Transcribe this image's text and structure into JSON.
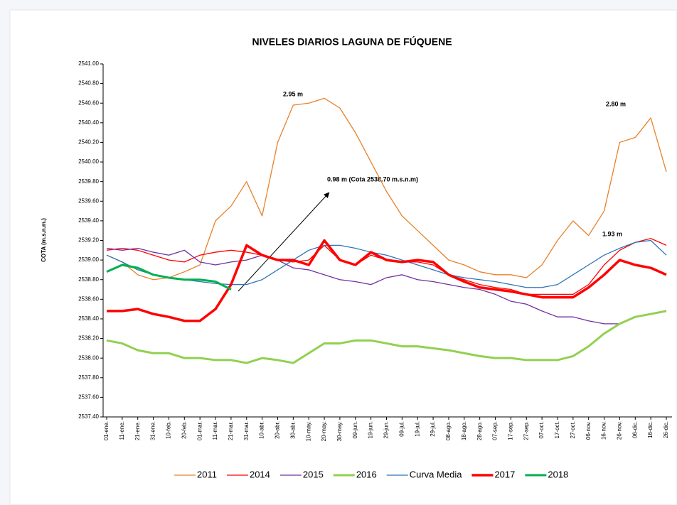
{
  "chart_data": {
    "type": "line",
    "title": "NIVELES DIARIOS LAGUNA DE FÚQUENE",
    "y_label": "COTA (m.s.n.m.)",
    "annotations": [
      "2.95 m",
      "2.80 m",
      "0.98 m (Cota 2538.70 m.s.n.m)",
      "1.93 m"
    ],
    "categories": [
      "01-ene.",
      "11-ene.",
      "21-ene.",
      "31-ene.",
      "10-feb.",
      "20-feb.",
      "01-mar.",
      "11-mar.",
      "21-mar.",
      "31-mar.",
      "10-abr.",
      "20-abr.",
      "30-abr.",
      "10-may.",
      "20-may.",
      "30-may.",
      "09-jun.",
      "19-jun.",
      "29-jun.",
      "09-jul.",
      "19-jul.",
      "29-jul.",
      "08-ago.",
      "18-ago.",
      "28-ago.",
      "07-sep.",
      "17-sep.",
      "27-sep.",
      "07-oct.",
      "17-oct.",
      "27-oct.",
      "06-nov.",
      "16-nov.",
      "26-nov.",
      "06-dic.",
      "16-dic.",
      "26-dic."
    ],
    "ylim": [
      2537.4,
      2541.0
    ],
    "yticks": [
      {
        "value": 2537.4,
        "label": "2537.40"
      },
      {
        "value": 2537.6,
        "label": "2537.60"
      },
      {
        "value": 2537.8,
        "label": "2537.80"
      },
      {
        "value": 2538.0,
        "label": "2538.00"
      },
      {
        "value": 2538.2,
        "label": "2538.20"
      },
      {
        "value": 2538.4,
        "label": "2538.40"
      },
      {
        "value": 2538.6,
        "label": "2538.60"
      },
      {
        "value": 2538.8,
        "label": "2538.80"
      },
      {
        "value": 2539.0,
        "label": "2539.00"
      },
      {
        "value": 2539.2,
        "label": "2539.20"
      },
      {
        "value": 2539.4,
        "label": "2539.40"
      },
      {
        "value": 2539.6,
        "label": "2539.60"
      },
      {
        "value": 2539.8,
        "label": "2539.80"
      },
      {
        "value": 2540.0,
        "label": "2540.00"
      },
      {
        "value": 2540.2,
        "label": "2540.20"
      },
      {
        "value": 2540.4,
        "label": "2540.40"
      },
      {
        "value": 2540.6,
        "label": "2540.60"
      },
      {
        "value": 2540.8,
        "label": "2540.80"
      },
      {
        "value": 2541.0,
        "label": "2541.00"
      }
    ],
    "legend": "bottom",
    "series": [
      {
        "name": "2011",
        "color": "#e8822a",
        "width": 1.3,
        "values": [
          2539.05,
          2538.98,
          2538.85,
          2538.8,
          2538.82,
          2538.88,
          2538.95,
          2539.4,
          2539.55,
          2539.8,
          2539.45,
          2540.2,
          2540.58,
          2540.6,
          2540.65,
          2540.55,
          2540.3,
          2540.0,
          2539.7,
          2539.45,
          2539.3,
          2539.15,
          2539.0,
          2538.95,
          2538.88,
          2538.85,
          2538.85,
          2538.82,
          2538.95,
          2539.2,
          2539.4,
          2539.25,
          2539.5,
          2540.2,
          2540.25,
          2540.45,
          2539.9
        ]
      },
      {
        "name": "2014",
        "color": "#ff0000",
        "width": 1.3,
        "values": [
          2539.1,
          2539.12,
          2539.1,
          2539.05,
          2539.0,
          2538.98,
          2539.05,
          2539.08,
          2539.1,
          2539.08,
          2539.05,
          2539.0,
          2538.98,
          2539.0,
          2539.15,
          2539.0,
          2538.95,
          2539.05,
          2539.0,
          2538.98,
          2538.98,
          2538.95,
          2538.85,
          2538.8,
          2538.75,
          2538.72,
          2538.7,
          2538.65,
          2538.65,
          2538.65,
          2538.65,
          2538.75,
          2538.95,
          2539.1,
          2539.18,
          2539.22,
          2539.15
        ]
      },
      {
        "name": "2015",
        "color": "#7030a0",
        "width": 1.3,
        "values": [
          2539.12,
          2539.1,
          2539.12,
          2539.08,
          2539.05,
          2539.1,
          2538.98,
          2538.95,
          2538.98,
          2539.0,
          2539.05,
          2539.0,
          2538.92,
          2538.9,
          2538.85,
          2538.8,
          2538.78,
          2538.75,
          2538.82,
          2538.85,
          2538.8,
          2538.78,
          2538.75,
          2538.72,
          2538.7,
          2538.65,
          2538.58,
          2538.55,
          2538.48,
          2538.42,
          2538.42,
          2538.38,
          2538.35,
          2538.35,
          null,
          null,
          null
        ]
      },
      {
        "name": "2016",
        "color": "#92d050",
        "width": 3,
        "values": [
          2538.18,
          2538.15,
          2538.08,
          2538.05,
          2538.05,
          2538.0,
          2538.0,
          2537.98,
          2537.98,
          2537.95,
          2538.0,
          2537.98,
          2537.95,
          2538.05,
          2538.15,
          2538.15,
          2538.18,
          2538.18,
          2538.15,
          2538.12,
          2538.12,
          2538.1,
          2538.08,
          2538.05,
          2538.02,
          2538.0,
          2538.0,
          2537.98,
          2537.98,
          2537.98,
          2538.02,
          2538.12,
          2538.25,
          2538.35,
          2538.42,
          2538.45,
          2538.48
        ]
      },
      {
        "name": "Curva Media",
        "color": "#2e75b6",
        "width": 1.3,
        "values": [
          2539.05,
          2538.98,
          2538.9,
          2538.85,
          2538.82,
          2538.8,
          2538.78,
          2538.76,
          2538.75,
          2538.75,
          2538.8,
          2538.9,
          2539.0,
          2539.1,
          2539.15,
          2539.15,
          2539.12,
          2539.08,
          2539.05,
          2539.0,
          2538.95,
          2538.9,
          2538.85,
          2538.82,
          2538.8,
          2538.78,
          2538.75,
          2538.72,
          2538.72,
          2538.75,
          2538.85,
          2538.95,
          2539.05,
          2539.12,
          2539.18,
          2539.2,
          2539.05
        ]
      },
      {
        "name": "2017",
        "color": "#ff0000",
        "width": 3.5,
        "values": [
          2538.48,
          2538.48,
          2538.5,
          2538.45,
          2538.42,
          2538.38,
          2538.38,
          2538.5,
          2538.75,
          2539.15,
          2539.05,
          2539.0,
          2539.0,
          2538.95,
          2539.2,
          2539.0,
          2538.95,
          2539.08,
          2539.0,
          2538.98,
          2539.0,
          2538.98,
          2538.85,
          2538.78,
          2538.72,
          2538.7,
          2538.68,
          2538.65,
          2538.62,
          2538.62,
          2538.62,
          2538.72,
          2538.85,
          2539.0,
          2538.95,
          2538.92,
          2538.85
        ]
      },
      {
        "name": "2018",
        "color": "#00b050",
        "width": 3,
        "values": [
          2538.88,
          2538.95,
          2538.92,
          2538.85,
          2538.82,
          2538.8,
          2538.8,
          2538.78,
          2538.7,
          null,
          null,
          null,
          null,
          null,
          null,
          null,
          null,
          null,
          null,
          null,
          null,
          null,
          null,
          null,
          null,
          null,
          null,
          null,
          null,
          null,
          null,
          null,
          null,
          null,
          null,
          null,
          null
        ]
      }
    ]
  }
}
